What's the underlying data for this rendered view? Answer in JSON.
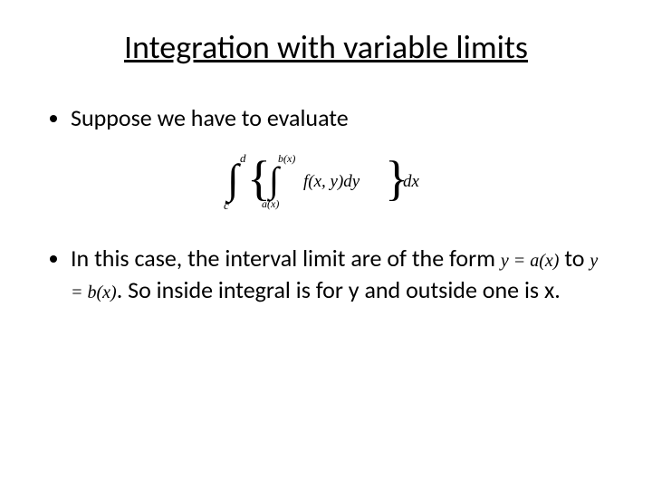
{
  "title": "Integration with variable limits",
  "bullets": [
    {
      "text": "Suppose we have to evaluate"
    },
    {
      "part1": "In this case, the interval limit are of  the form ",
      "eq1": "y = a(x)",
      "mid": " to ",
      "eq2": "y = b(x)",
      "part2": ". So inside integral is for y and outside one is x."
    }
  ],
  "formula": {
    "outer_lower": "c",
    "outer_upper": "d",
    "inner_lower": "a(x)",
    "inner_upper": "b(x)",
    "integrand": "f(x, y)dy",
    "outer_dx": "dx"
  },
  "style": {
    "background": "#ffffff",
    "text_color": "#000000",
    "title_fontsize": 36,
    "body_fontsize": 26,
    "formula_font": "Times New Roman",
    "body_font": "Calibri"
  }
}
